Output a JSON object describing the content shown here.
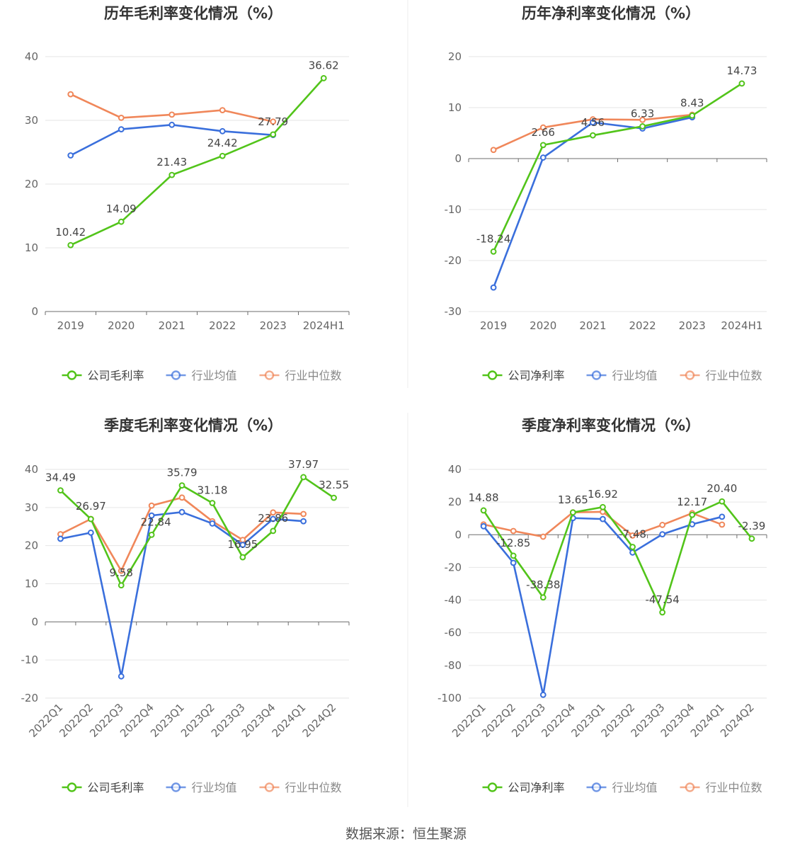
{
  "footer": {
    "source": "数据来源：恒生聚源"
  },
  "colors": {
    "company": "#52c41a",
    "avg": "#3a6fdc",
    "median": "#f0875a",
    "grid": "#e6e6e6",
    "axis": "#6e6e6e",
    "text": "#666666",
    "title": "#333333"
  },
  "chart_data": [
    {
      "type": "line",
      "title": "历年毛利率变化情况（%）",
      "categories": [
        "2019",
        "2020",
        "2021",
        "2022",
        "2023",
        "2024H1"
      ],
      "ylim": [
        0,
        40
      ],
      "yticks": [
        0,
        10,
        20,
        30,
        40
      ],
      "series": [
        {
          "name": "公司毛利率",
          "key": "company",
          "values": [
            10.42,
            14.09,
            21.43,
            24.42,
            27.79,
            36.62
          ],
          "labels": [
            "10.42",
            "14.09",
            "21.43",
            "24.42",
            "27.79",
            "36.62"
          ]
        },
        {
          "name": "行业均值",
          "key": "avg",
          "values": [
            24.5,
            28.6,
            29.3,
            28.3,
            27.7,
            null
          ]
        },
        {
          "name": "行业中位数",
          "key": "median",
          "values": [
            34.1,
            30.4,
            30.9,
            31.6,
            29.8,
            null
          ]
        }
      ],
      "legend": [
        "公司毛利率",
        "行业均值",
        "行业中位数"
      ],
      "rotate_x": false
    },
    {
      "type": "line",
      "title": "历年净利率变化情况（%）",
      "categories": [
        "2019",
        "2020",
        "2021",
        "2022",
        "2023",
        "2024H1"
      ],
      "ylim": [
        -30,
        20
      ],
      "yticks": [
        -30,
        -20,
        -10,
        0,
        10,
        20
      ],
      "series": [
        {
          "name": "公司净利率",
          "key": "company",
          "values": [
            -18.24,
            2.66,
            4.56,
            6.33,
            8.43,
            14.73
          ],
          "labels": [
            "-18.24",
            "2.66",
            "4.56",
            "6.33",
            "8.43",
            "14.73"
          ]
        },
        {
          "name": "行业均值",
          "key": "avg",
          "values": [
            -25.3,
            0.2,
            7.1,
            5.9,
            8.1,
            null
          ]
        },
        {
          "name": "行业中位数",
          "key": "median",
          "values": [
            1.7,
            6.1,
            7.7,
            7.6,
            8.6,
            null
          ]
        }
      ],
      "legend": [
        "公司净利率",
        "行业均值",
        "行业中位数"
      ],
      "rotate_x": false
    },
    {
      "type": "line",
      "title": "季度毛利率变化情况（%）",
      "categories": [
        "2022Q1",
        "2022Q2",
        "2022Q3",
        "2022Q4",
        "2023Q1",
        "2023Q2",
        "2023Q3",
        "2023Q4",
        "2024Q1",
        "2024Q2"
      ],
      "ylim": [
        -20,
        40
      ],
      "yticks": [
        -20,
        -10,
        0,
        10,
        20,
        30,
        40
      ],
      "series": [
        {
          "name": "公司毛利率",
          "key": "company",
          "values": [
            34.49,
            26.97,
            9.58,
            22.84,
            35.79,
            31.18,
            16.95,
            23.86,
            37.97,
            32.55
          ],
          "labels": [
            "34.49",
            "26.97",
            "9.58",
            "22.84",
            "35.79",
            "31.18",
            "16.95",
            "23.86",
            "37.97",
            "32.55"
          ]
        },
        {
          "name": "行业均值",
          "key": "avg",
          "values": [
            21.8,
            23.4,
            -14.3,
            27.9,
            28.8,
            25.8,
            20.2,
            27.0,
            26.4,
            null
          ]
        },
        {
          "name": "行业中位数",
          "key": "median",
          "values": [
            23.0,
            27.0,
            13.4,
            30.5,
            32.6,
            26.4,
            21.5,
            28.7,
            28.3,
            null
          ]
        }
      ],
      "legend": [
        "公司毛利率",
        "行业均值",
        "行业中位数"
      ],
      "rotate_x": true
    },
    {
      "type": "line",
      "title": "季度净利率变化情况（%）",
      "categories": [
        "2022Q1",
        "2022Q2",
        "2022Q3",
        "2022Q4",
        "2023Q1",
        "2023Q2",
        "2023Q3",
        "2023Q4",
        "2024Q1",
        "2024Q2"
      ],
      "ylim": [
        -100,
        40
      ],
      "yticks": [
        -100,
        -80,
        -60,
        -40,
        -20,
        0,
        20,
        40
      ],
      "series": [
        {
          "name": "公司净利率",
          "key": "company",
          "values": [
            14.88,
            -12.85,
            -38.38,
            13.65,
            16.92,
            -7.48,
            -47.54,
            12.17,
            20.4,
            -2.39
          ],
          "labels": [
            "14.88",
            "-12.85",
            "-38.38",
            "13.65",
            "16.92",
            "-7.48",
            "-47.54",
            "12.17",
            "20.40",
            "-2.39"
          ]
        },
        {
          "name": "行业均值",
          "key": "avg",
          "values": [
            5.2,
            -17.2,
            -98.0,
            10.2,
            9.6,
            -10.9,
            0.3,
            6.4,
            11.0,
            null
          ]
        },
        {
          "name": "行业中位数",
          "key": "median",
          "values": [
            6.3,
            2.3,
            -1.2,
            13.7,
            14.0,
            -0.5,
            6.0,
            13.2,
            6.2,
            null
          ]
        }
      ],
      "legend": [
        "公司净利率",
        "行业均值",
        "行业中位数"
      ],
      "rotate_x": true
    }
  ]
}
